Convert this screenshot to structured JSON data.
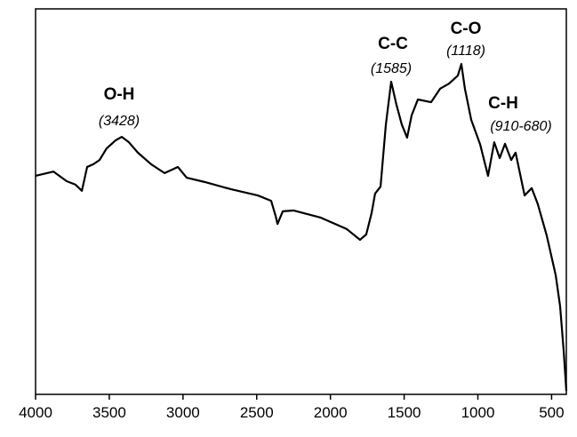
{
  "chart_data": {
    "type": "line",
    "x": [
      4000,
      3879,
      3789,
      3729,
      3686,
      3650,
      3608,
      3566,
      3518,
      3457,
      3415,
      3367,
      3306,
      3216,
      3125,
      3035,
      2975,
      2854,
      2673,
      2492,
      2402,
      2372,
      2359,
      2323,
      2251,
      2070,
      1890,
      1799,
      1757,
      1721,
      1697,
      1660,
      1624,
      1588,
      1552,
      1516,
      1480,
      1449,
      1407,
      1317,
      1256,
      1196,
      1136,
      1112,
      1088,
      1045,
      985,
      931,
      889,
      852,
      816,
      774,
      744,
      683,
      635,
      593,
      533,
      472,
      442,
      418,
      400
    ],
    "values": [
      56.7,
      57.8,
      55.3,
      54.4,
      52.8,
      59.0,
      59.7,
      60.8,
      63.8,
      65.9,
      66.8,
      65.4,
      62.7,
      59.7,
      57.4,
      59.0,
      56.2,
      55.1,
      53.2,
      51.6,
      50.2,
      46.3,
      44.2,
      47.5,
      47.7,
      45.9,
      42.9,
      40.1,
      41.5,
      47.0,
      52.1,
      53.9,
      70.0,
      81.1,
      75.1,
      70.0,
      66.6,
      72.4,
      76.5,
      75.8,
      79.3,
      80.6,
      82.7,
      85.7,
      79.3,
      71.2,
      64.9,
      56.7,
      65.4,
      61.3,
      65.0,
      60.8,
      62.7,
      51.6,
      53.5,
      49.3,
      41.2,
      30.9,
      22.8,
      11.3,
      0.9
    ],
    "color": "#000000",
    "xlim": [
      4000,
      400
    ],
    "ylim": [
      0,
      100
    ],
    "xticks": [
      4000,
      3500,
      3000,
      2500,
      2000,
      1500,
      1000,
      500
    ],
    "annotations": [
      {
        "label": "O-H",
        "note": "(3428)"
      },
      {
        "label": "C-C",
        "note": "(1585)"
      },
      {
        "label": "C-O",
        "note": "(1118)"
      },
      {
        "label": "C-H",
        "note": "(910-680)"
      }
    ]
  }
}
